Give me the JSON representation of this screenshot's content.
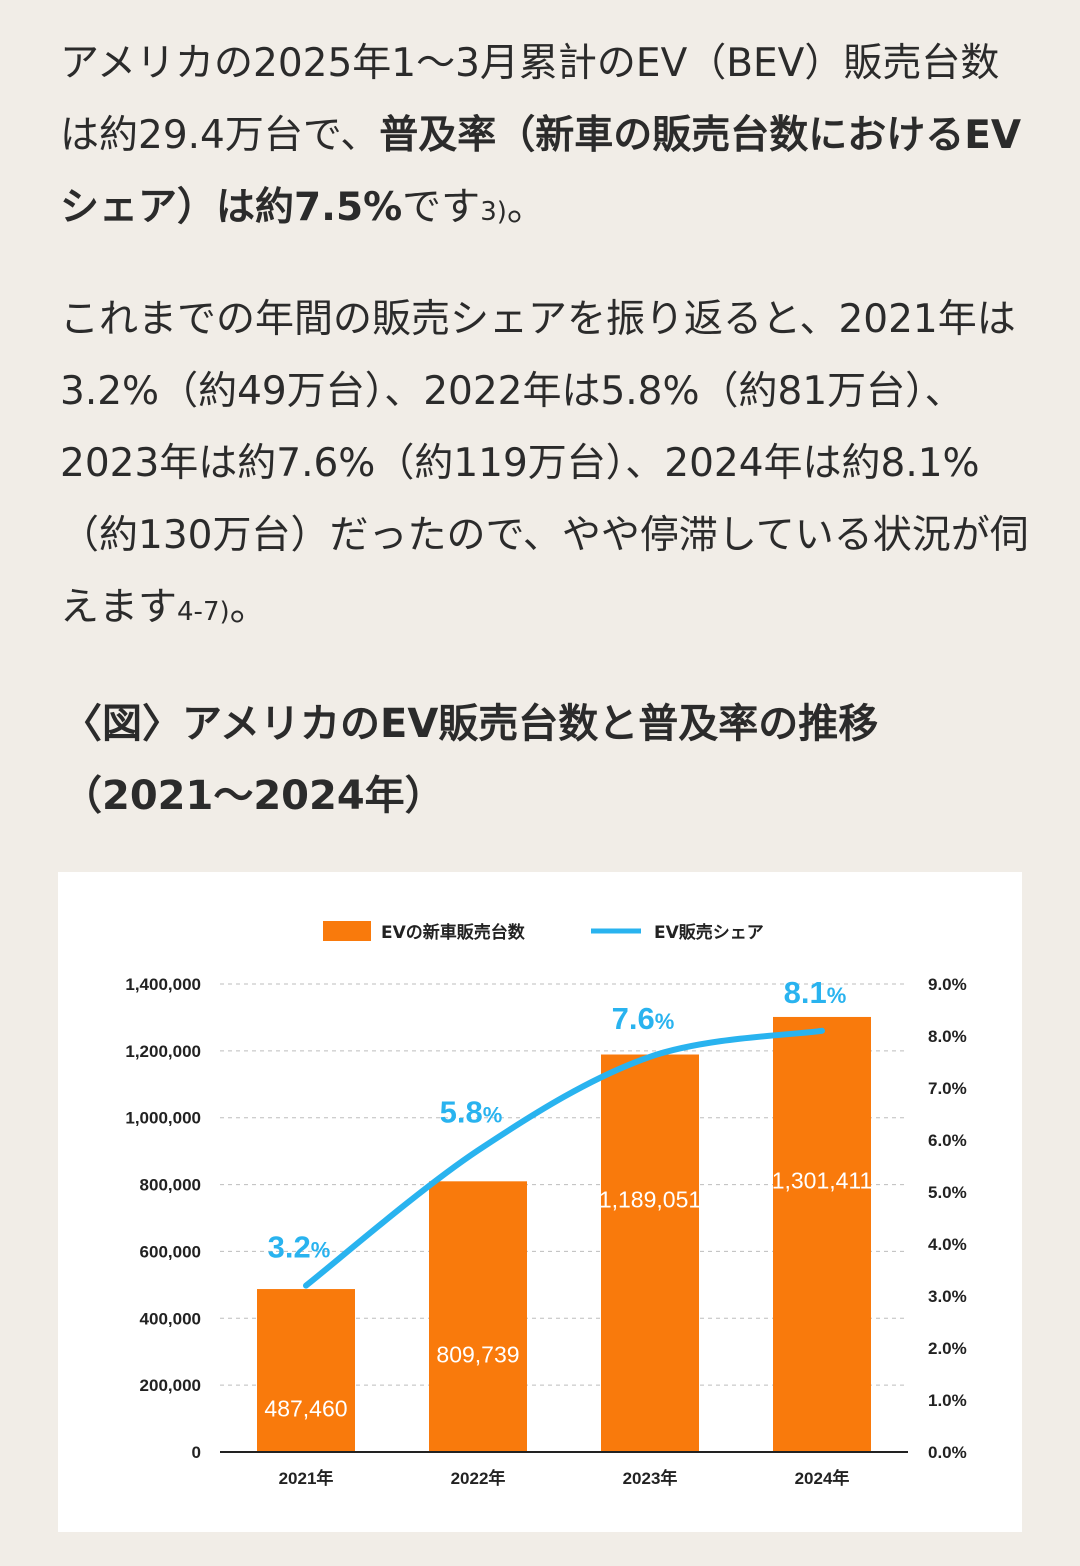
{
  "article": {
    "p1": {
      "t1": "アメリカの2025年1〜3月累計のEV（BEV）販売台数は約29.4万台で、",
      "b1": "普及率（新車の販売台数におけるEVシェア）は約7.5%",
      "t2": "です",
      "ref": "3)",
      "t3": "。"
    },
    "p2": {
      "t1": "これまでの年間の販売シェアを振り返ると、2021年は3.2%（約49万台）、2022年は5.8%（約81万台）、2023年は約7.6%（約119万台）、2024年は約8.1%（約130万台）だったので、やや停滞している状況が伺えます",
      "ref": "4-7)",
      "t2": "。"
    },
    "figure_title": "〈図〉アメリカのEV販売台数と普及率の推移（2021〜2024年）"
  },
  "colors": {
    "bar": "#f97a0c",
    "line": "#29b3ef",
    "grid": "#bdbdbd",
    "axis": "#222222"
  },
  "chart_data": {
    "type": "bar",
    "title": "",
    "categories": [
      "2021年",
      "2022年",
      "2023年",
      "2024年"
    ],
    "series": [
      {
        "name": "EVの新車販売台数",
        "kind": "bar",
        "axis": "left",
        "values": [
          487460,
          809739,
          1189051,
          1301411
        ],
        "labels": [
          "487,460",
          "809,739",
          "1,189,051",
          "1,301,411"
        ]
      },
      {
        "name": "EV販売シェア",
        "kind": "line",
        "axis": "right",
        "values": [
          3.2,
          5.8,
          7.6,
          8.1
        ],
        "labels": [
          "3.2",
          "5.8",
          "7.6",
          "8.1"
        ],
        "label_unit": "%"
      }
    ],
    "y_left": {
      "min": 0,
      "max": 1400000,
      "ticks": [
        "0",
        "200,000",
        "400,000",
        "600,000",
        "800,000",
        "1,000,000",
        "1,200,000",
        "1,400,000"
      ]
    },
    "y_right": {
      "min": 0,
      "max": 9,
      "ticks": [
        "0.0%",
        "1.0%",
        "2.0%",
        "3.0%",
        "4.0%",
        "5.0%",
        "6.0%",
        "7.0%",
        "8.0%",
        "9.0%"
      ]
    },
    "grid": true,
    "legend": "top-center"
  }
}
